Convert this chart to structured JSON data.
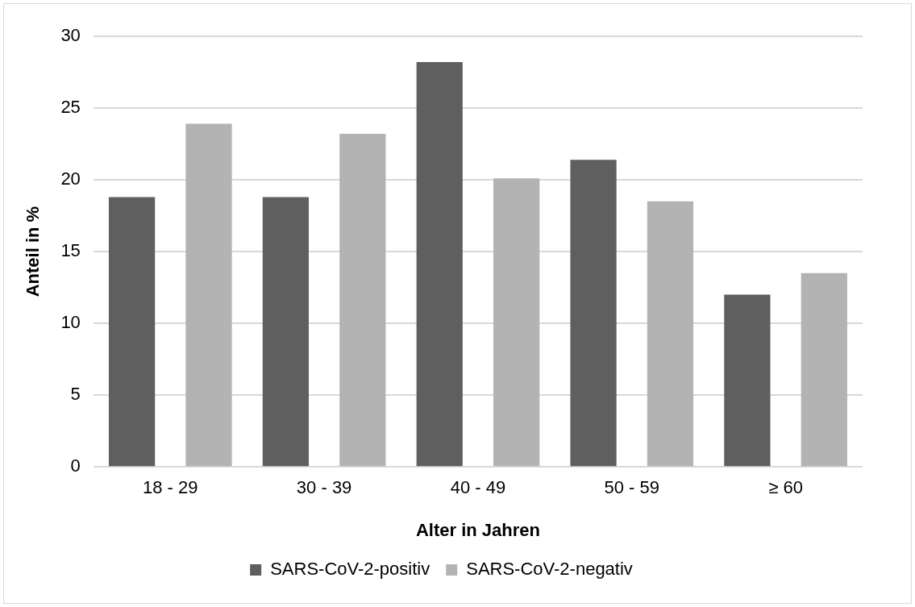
{
  "chart_data": {
    "type": "bar",
    "xlabel": "Alter in Jahren",
    "ylabel": "Anteil in %",
    "categories": [
      "18 - 29",
      "30 - 39",
      "40 - 49",
      "50 - 59",
      "≥ 60"
    ],
    "series": [
      {
        "name": "SARS-CoV-2-positiv",
        "color": "#5f5f5f",
        "values": [
          18.8,
          18.8,
          28.2,
          21.4,
          12.0
        ]
      },
      {
        "name": "SARS-CoV-2-negativ",
        "color": "#b3b3b3",
        "values": [
          23.9,
          23.2,
          20.1,
          18.5,
          13.5
        ]
      }
    ],
    "ylim": [
      0,
      30
    ],
    "yticks": [
      0,
      5,
      10,
      15,
      20,
      25,
      30
    ],
    "grid": "y",
    "legend": "bottom"
  }
}
